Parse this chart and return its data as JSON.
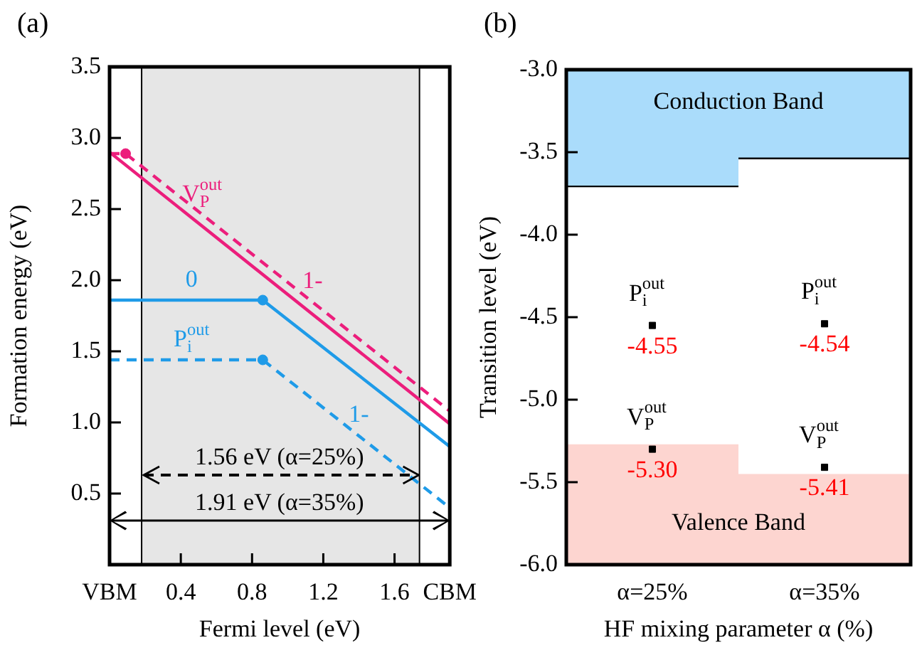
{
  "chart_data": [
    {
      "type": "line",
      "title": "(a)",
      "xlabel": "Fermi level (eV)",
      "ylabel": "Formation energy (eV)",
      "xlim": [
        0,
        1.91
      ],
      "xticks": [
        {
          "value": 0,
          "label": "VBM"
        },
        0.4,
        0.8,
        1.2,
        1.6,
        {
          "value": 1.91,
          "label": "CBM"
        }
      ],
      "ylim": [
        0,
        3.5
      ],
      "yticks": [
        0.5,
        {
          "value": 1,
          "label": "1.0"
        },
        1.5,
        {
          "value": 2,
          "label": "2.0"
        },
        2.5,
        {
          "value": 3,
          "label": "3.0"
        },
        3.5
      ],
      "grid": false,
      "legend": false,
      "bands": [
        {
          "axis": "x",
          "from": 0.18,
          "to": 1.74,
          "color": "#e6e6e6"
        }
      ],
      "ref_lines": [
        {
          "axis": "x",
          "value": 0.18,
          "color": "#000000"
        },
        {
          "axis": "x",
          "value": 1.74,
          "color": "#000000"
        }
      ],
      "series": [
        {
          "color": "#ec1e7c",
          "x": [
            0,
            1.91
          ],
          "values": [
            2.9,
            0.99
          ],
          "line_style": "solid"
        },
        {
          "color": "#ec1e7c",
          "x": [
            0,
            0.09,
            1.91
          ],
          "values": [
            2.89,
            2.89,
            1.08
          ],
          "line_style": "dashed"
        },
        {
          "color": "#1f9be8",
          "x": [
            0,
            0.86,
            1.91
          ],
          "values": [
            1.86,
            1.86,
            0.83
          ],
          "line_style": "solid"
        },
        {
          "color": "#1f9be8",
          "x": [
            0,
            0.86,
            1.91
          ],
          "values": [
            1.44,
            1.44,
            0.4
          ],
          "line_style": "dashed"
        },
        {
          "type": "scatter",
          "marker": "circle",
          "x": [
            0.09,
            0.86,
            0.86
          ],
          "values": [
            2.89,
            1.86,
            1.44
          ],
          "colors": [
            "#ec1e7c",
            "#1f9be8",
            "#1f9be8"
          ]
        }
      ],
      "annotations": [
        {
          "text": "V$_{P}$$^{out}$",
          "x": 0.52,
          "y": 2.46
        },
        {
          "text": "1-",
          "x": 1.14,
          "y": 1.85
        },
        {
          "text": "0",
          "x": 0.46,
          "y": 1.86
        },
        {
          "text": "P$_{i}$$^{out}$",
          "x": 0.46,
          "y": 1.44
        },
        {
          "text": "1-",
          "x": 1.4,
          "y": 0.91
        },
        "1.56 eV (α=25%)",
        "1.91 eV (α=35%)"
      ]
    },
    {
      "type": "bar",
      "title": "(b)",
      "xlabel": "HF mixing parameter α (%)",
      "ylabel": "Transition level (eV)",
      "categories": [
        "α=25%",
        "α=35%"
      ],
      "ylim": [
        -6,
        -3
      ],
      "yticks": [
        {
          "value": -6,
          "label": "-6.0"
        },
        -5.5,
        {
          "value": -5,
          "label": "-5.0"
        },
        -4.5,
        {
          "value": -4,
          "label": "-4.0"
        },
        -3.5,
        {
          "value": -3,
          "label": "-3.0"
        }
      ],
      "grid": false,
      "legend": false,
      "series": [
        {
          "color": "#aadcfb",
          "base": [
            -3.71,
            -3.54
          ],
          "values": [
            0.71,
            0.54
          ]
        },
        {
          "color": "#fdd5d0",
          "base": [
            -6,
            -6
          ],
          "values": [
            0.73,
            0.55
          ]
        },
        {
          "type": "scatter",
          "marker": "square",
          "name": "V$_{P}$$^{out}$",
          "color": "#000000",
          "x": [
            "α=25%",
            "α=35%"
          ],
          "values": [
            -5.3,
            -5.41
          ],
          "value_labels": [
            "-5.30",
            "-5.41"
          ]
        },
        {
          "type": "scatter",
          "marker": "square",
          "name": "P$_{i}$$^{out}$",
          "color": "#000000",
          "x": [
            "α=25%",
            "α=35%"
          ],
          "values": [
            -4.55,
            -4.54
          ],
          "value_labels": [
            "-4.55",
            "-4.54"
          ]
        }
      ],
      "annotations": [
        {
          "text": "Conduction Band",
          "y": -3.2
        },
        {
          "text": "Valence Band",
          "y": -5.75
        }
      ]
    }
  ]
}
